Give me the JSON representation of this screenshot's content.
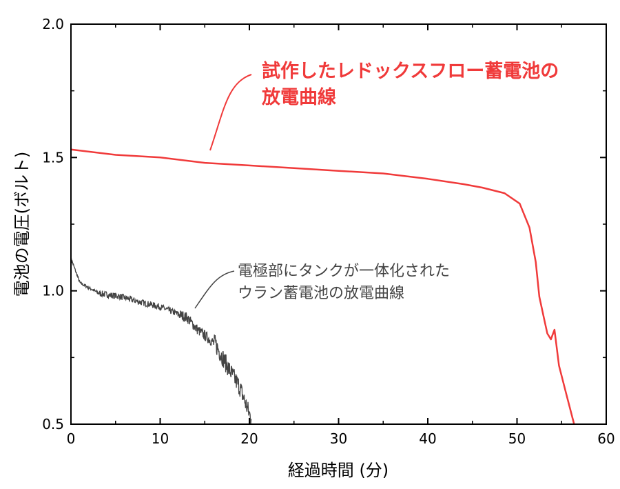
{
  "chart_data": {
    "type": "line",
    "title": "",
    "xlabel": "経過時間 (分)",
    "ylabel": "電池の電圧(ボルト)",
    "xlim": [
      0,
      60
    ],
    "ylim": [
      0.5,
      2.0
    ],
    "xticks": [
      "0",
      "10",
      "20",
      "30",
      "40",
      "50",
      "60"
    ],
    "yticks": [
      "0.5",
      "1.0",
      "1.5",
      "2.0"
    ],
    "grid": false,
    "series": [
      {
        "color": "#f03a3a",
        "x": [
          0,
          5,
          10,
          15,
          20,
          25,
          30,
          35,
          40,
          44,
          46.1,
          48.6,
          50.3,
          51.4,
          52.1,
          52.5,
          53.0,
          53.4,
          53.8,
          54.2,
          54.7,
          55.5,
          56.4
        ],
        "y": [
          1.53,
          1.51,
          1.5,
          1.48,
          1.47,
          1.46,
          1.45,
          1.44,
          1.42,
          1.4,
          1.387,
          1.366,
          1.327,
          1.237,
          1.108,
          0.978,
          0.9,
          0.84,
          0.818,
          0.854,
          0.72,
          0.616,
          0.5
        ]
      },
      {
        "color": "#444444",
        "x": [
          0,
          0.15,
          1.0,
          3.2,
          5.6,
          7.5,
          10,
          13,
          14.2,
          16.2,
          17.7,
          18.9,
          20.2
        ],
        "y": [
          1.12,
          1.108,
          1.03,
          0.99,
          0.978,
          0.96,
          0.94,
          0.9,
          0.854,
          0.8,
          0.707,
          0.64,
          0.52
        ]
      }
    ],
    "annotations": [
      {
        "lines": [
          "試作したレドックスフロー蓄電池の",
          "放電曲線"
        ],
        "color": "#f03a3a"
      },
      {
        "lines": [
          "電極部にタンクが一体化された",
          "ウラン蓄電池の放電曲線"
        ],
        "color": "#444444"
      }
    ]
  }
}
